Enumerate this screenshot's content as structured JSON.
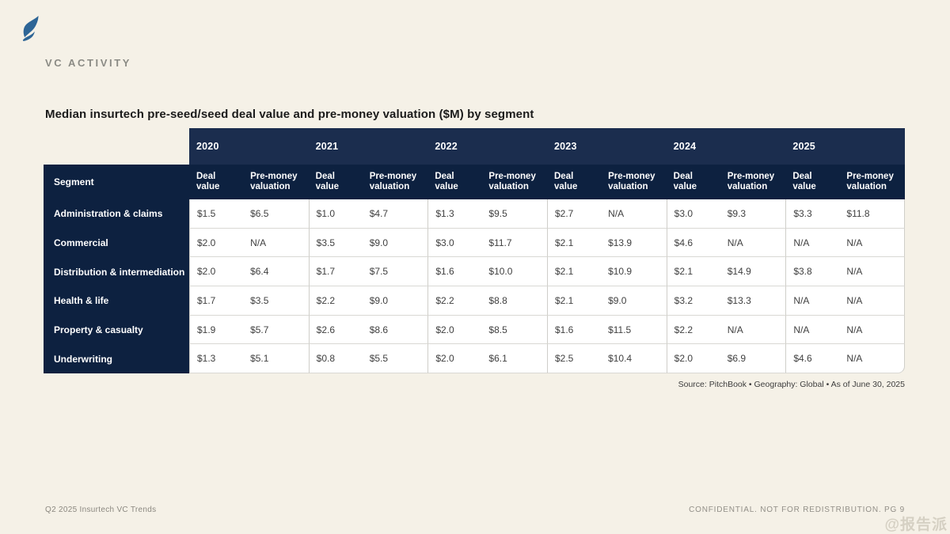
{
  "page": {
    "section_label": "VC ACTIVITY",
    "source_line": "Source: PitchBook  •  Geography: Global  •  As of June 30, 2025",
    "footer_left": "Q2 2025 Insurtech VC Trends",
    "footer_right": "CONFIDENTIAL. NOT FOR REDISTRIBUTION.  PG 9",
    "watermark": "@报告派"
  },
  "colors": {
    "background": "#f5f1e7",
    "navy_year_row": "#1b2d4e",
    "navy_dark": "#0d2140",
    "logo_blue": "#2d6596",
    "row_line": "#d9d8d4",
    "value_text": "#404040"
  },
  "chart_data": {
    "type": "table",
    "title": "Median insurtech pre-seed/seed deal value and pre-money valuation ($M) by segment",
    "segment_header": "Segment",
    "years": [
      "2020",
      "2021",
      "2022",
      "2023",
      "2024",
      "2025"
    ],
    "subcolumns": [
      "Deal value",
      "Pre-money valuation"
    ],
    "rows": [
      {
        "segment": "Administration & claims",
        "values": [
          "$1.5",
          "$6.5",
          "$1.0",
          "$4.7",
          "$1.3",
          "$9.5",
          "$2.7",
          "N/A",
          "$3.0",
          "$9.3",
          "$3.3",
          "$11.8"
        ]
      },
      {
        "segment": "Commercial",
        "values": [
          "$2.0",
          "N/A",
          "$3.5",
          "$9.0",
          "$3.0",
          "$11.7",
          "$2.1",
          "$13.9",
          "$4.6",
          "N/A",
          "N/A",
          "N/A"
        ]
      },
      {
        "segment": "Distribution & intermediation",
        "values": [
          "$2.0",
          "$6.4",
          "$1.7",
          "$7.5",
          "$1.6",
          "$10.0",
          "$2.1",
          "$10.9",
          "$2.1",
          "$14.9",
          "$3.8",
          "N/A"
        ]
      },
      {
        "segment": "Health & life",
        "values": [
          "$1.7",
          "$3.5",
          "$2.2",
          "$9.0",
          "$2.2",
          "$8.8",
          "$2.1",
          "$9.0",
          "$3.2",
          "$13.3",
          "N/A",
          "N/A"
        ]
      },
      {
        "segment": "Property & casualty",
        "values": [
          "$1.9",
          "$5.7",
          "$2.6",
          "$8.6",
          "$2.0",
          "$8.5",
          "$1.6",
          "$11.5",
          "$2.2",
          "N/A",
          "N/A",
          "N/A"
        ]
      },
      {
        "segment": "Underwriting",
        "values": [
          "$1.3",
          "$5.1",
          "$0.8",
          "$5.5",
          "$2.0",
          "$6.1",
          "$2.5",
          "$10.4",
          "$2.0",
          "$6.9",
          "$4.6",
          "N/A"
        ]
      }
    ]
  }
}
